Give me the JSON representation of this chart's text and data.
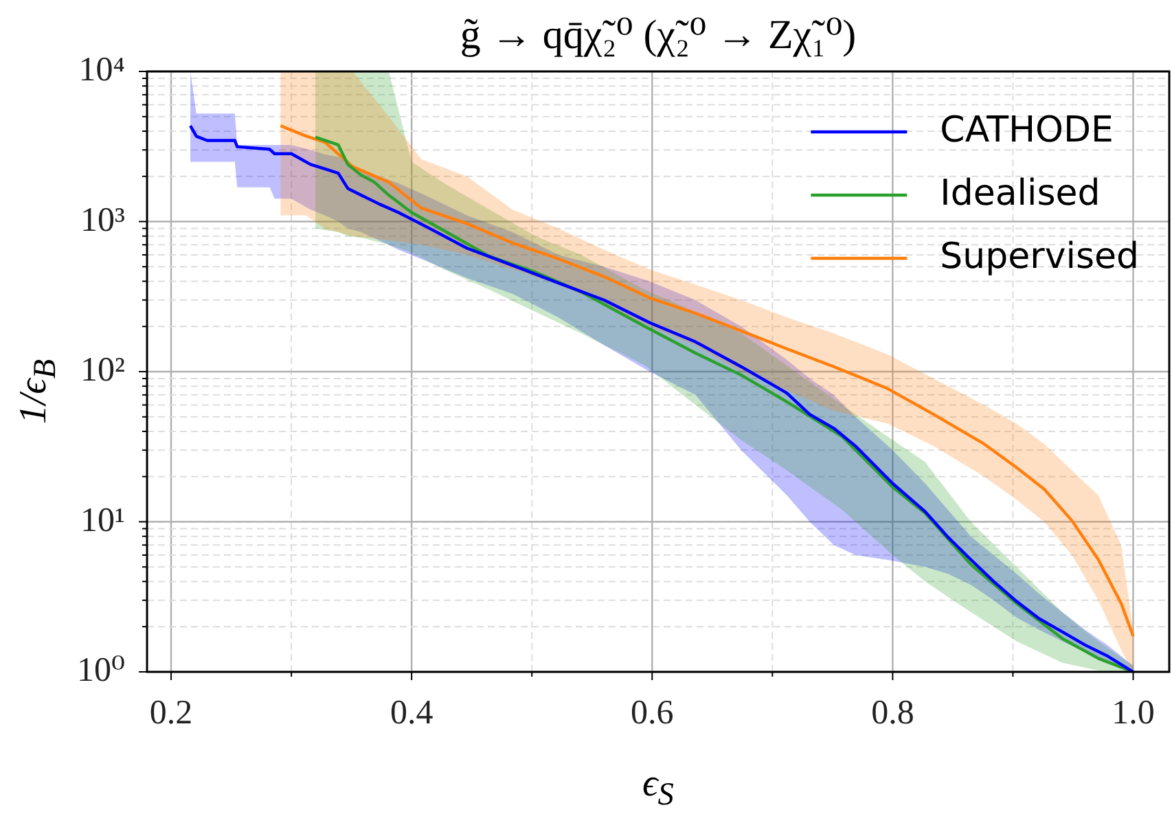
{
  "chart_data": {
    "type": "line",
    "title": "g̃ → qq̄χ̃₂⁰  (χ̃₂⁰ → Zχ̃₁⁰)",
    "xlabel": "ϵ$_{S}$",
    "ylabel": "1/ϵ$_{B}$",
    "log": "y",
    "grid": true,
    "legend": "top right",
    "xlim": [
      0.18,
      1.03
    ],
    "ylim": [
      1,
      10000
    ],
    "xticks": [
      0.2,
      {
        "value": 0.3,
        "label": null
      },
      0.4,
      {
        "value": 0.5,
        "label": null
      },
      0.6,
      {
        "value": 0.7,
        "label": null
      },
      0.8,
      {
        "value": 0.9,
        "label": null
      },
      {
        "value": 1.0,
        "label": "1.0"
      }
    ],
    "yticks": [
      {
        "value": 1,
        "label": "10⁰"
      },
      {
        "value": 2,
        "label": null
      },
      {
        "value": 3,
        "label": null
      },
      {
        "value": 4,
        "label": null
      },
      {
        "value": 5,
        "label": null
      },
      {
        "value": 6,
        "label": null
      },
      {
        "value": 7,
        "label": null
      },
      {
        "value": 8,
        "label": null
      },
      {
        "value": 9,
        "label": null
      },
      {
        "value": 10,
        "label": "10¹"
      },
      {
        "value": 20,
        "label": null
      },
      {
        "value": 30,
        "label": null
      },
      {
        "value": 40,
        "label": null
      },
      {
        "value": 50,
        "label": null
      },
      {
        "value": 60,
        "label": null
      },
      {
        "value": 70,
        "label": null
      },
      {
        "value": 80,
        "label": null
      },
      {
        "value": 90,
        "label": null
      },
      {
        "value": 100,
        "label": "10²"
      },
      {
        "value": 200,
        "label": null
      },
      {
        "value": 300,
        "label": null
      },
      {
        "value": 400,
        "label": null
      },
      {
        "value": 500,
        "label": null
      },
      {
        "value": 600,
        "label": null
      },
      {
        "value": 700,
        "label": null
      },
      {
        "value": 800,
        "label": null
      },
      {
        "value": 900,
        "label": null
      },
      {
        "value": 1000,
        "label": "10³"
      },
      {
        "value": 2000,
        "label": null
      },
      {
        "value": 3000,
        "label": null
      },
      {
        "value": 4000,
        "label": null
      },
      {
        "value": 5000,
        "label": null
      },
      {
        "value": 6000,
        "label": null
      },
      {
        "value": 7000,
        "label": null
      },
      {
        "value": 8000,
        "label": null
      },
      {
        "value": 9000,
        "label": null
      },
      {
        "value": 10000,
        "label": "10⁴"
      }
    ],
    "series": [
      {
        "name": "CATHODE",
        "color": "#0000ff",
        "x": [
          0.216,
          0.221,
          0.23,
          0.253,
          0.255,
          0.282,
          0.286,
          0.3,
          0.316,
          0.328,
          0.339,
          0.347,
          0.358,
          0.373,
          0.389,
          0.411,
          0.446,
          0.484,
          0.522,
          0.56,
          0.598,
          0.636,
          0.674,
          0.712,
          0.731,
          0.751,
          0.769,
          0.8,
          0.827,
          0.846,
          0.865,
          0.884,
          0.903,
          0.922,
          0.941,
          0.96,
          0.979,
          1.0
        ],
        "values": [
          4350,
          3700,
          3470,
          3470,
          3150,
          3030,
          2830,
          2830,
          2400,
          2240,
          2100,
          1660,
          1500,
          1310,
          1150,
          935,
          665,
          510,
          390,
          300,
          212,
          158,
          108,
          72,
          52,
          42,
          32,
          18,
          11.7,
          7.9,
          5.6,
          4.0,
          2.95,
          2.26,
          1.85,
          1.51,
          1.27,
          1.0
        ],
        "lower": [
          2500,
          2500,
          2500,
          2500,
          1690,
          1690,
          1420,
          1420,
          1200,
          1100,
          1000,
          900,
          850,
          750,
          650,
          550,
          420,
          330,
          230,
          150,
          100,
          70,
          30,
          15,
          10,
          7,
          6,
          5.5,
          5,
          4.5,
          3.8,
          3,
          2.3,
          1.9,
          1.6,
          1.35,
          1.15,
          1
        ],
        "upper": [
          10000,
          5250,
          5250,
          5250,
          3240,
          3240,
          3240,
          3240,
          3000,
          2800,
          2700,
          2500,
          2200,
          2000,
          1800,
          1500,
          1100,
          850,
          600,
          500,
          400,
          300,
          200,
          120,
          90,
          70,
          50,
          30,
          18,
          12,
          8,
          6,
          4.5,
          3.3,
          2.5,
          1.9,
          1.5,
          1.1
        ]
      },
      {
        "name": "Idealised",
        "color": "#2ca02c",
        "x": [
          0.32,
          0.339,
          0.347,
          0.358,
          0.369,
          0.381,
          0.4,
          0.427,
          0.465,
          0.503,
          0.541,
          0.594,
          0.636,
          0.674,
          0.712,
          0.758,
          0.8,
          0.827,
          0.865,
          0.903,
          0.941,
          0.971,
          1.0
        ],
        "values": [
          3650,
          3240,
          2400,
          2040,
          1830,
          1500,
          1150,
          870,
          585,
          460,
          340,
          200,
          133,
          95,
          63,
          37,
          17,
          11.4,
          5.2,
          2.86,
          1.67,
          1.23,
          1.0
        ],
        "lower": [
          900,
          850,
          800,
          780,
          740,
          700,
          620,
          480,
          350,
          250,
          180,
          110,
          60,
          35,
          22,
          12,
          6,
          4,
          2.5,
          1.6,
          1.15,
          1.02,
          1
        ],
        "upper": [
          10000,
          10000,
          10000,
          10000,
          10000,
          10000,
          2500,
          1800,
          1200,
          800,
          600,
          350,
          250,
          180,
          110,
          60,
          35,
          25,
          10,
          5,
          2.5,
          1.6,
          1.1
        ]
      },
      {
        "name": "Supervised",
        "color": "#ff7f0e",
        "x": [
          0.291,
          0.312,
          0.328,
          0.351,
          0.381,
          0.408,
          0.446,
          0.484,
          0.522,
          0.56,
          0.598,
          0.636,
          0.674,
          0.712,
          0.751,
          0.796,
          0.834,
          0.876,
          0.903,
          0.926,
          0.949,
          0.971,
          0.99,
          1.0
        ],
        "values": [
          4350,
          3720,
          3370,
          2320,
          1830,
          1230,
          970,
          720,
          565,
          430,
          310,
          245,
          187,
          142,
          108,
          77,
          52,
          33,
          23,
          16.5,
          10.2,
          5.6,
          2.86,
          1.73
        ],
        "lower": [
          1100,
          1100,
          900,
          800,
          750,
          700,
          600,
          480,
          380,
          280,
          200,
          150,
          100,
          75,
          55,
          45,
          32,
          20,
          14,
          10,
          6,
          3,
          1.4,
          1
        ],
        "upper": [
          10000,
          10000,
          10000,
          10000,
          5000,
          2600,
          2000,
          1200,
          900,
          650,
          480,
          380,
          300,
          230,
          180,
          130,
          90,
          60,
          45,
          33,
          22,
          15,
          7,
          1.9
        ]
      }
    ]
  }
}
